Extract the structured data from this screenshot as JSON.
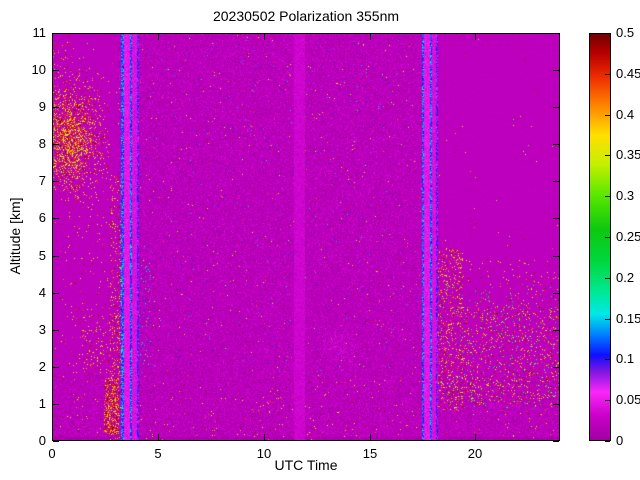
{
  "chart_data": {
    "type": "heatmap",
    "title": "20230502 Polarization 355nm",
    "xlabel": "UTC Time",
    "ylabel": "Altitude [km]",
    "x_range": [
      0,
      24
    ],
    "y_range": [
      0,
      11
    ],
    "x_ticks": [
      0,
      5,
      10,
      15,
      20
    ],
    "x_tick_labels": [
      "0",
      "5",
      "10",
      "15",
      "20"
    ],
    "y_ticks": [
      0,
      1,
      2,
      3,
      4,
      5,
      6,
      7,
      8,
      9,
      10,
      11
    ],
    "y_tick_labels": [
      "0",
      "1",
      "2",
      "3",
      "4",
      "5",
      "6",
      "7",
      "8",
      "9",
      "10",
      "11"
    ],
    "colorbar": {
      "range": [
        0,
        0.5
      ],
      "ticks": [
        0,
        0.05,
        0.1,
        0.15,
        0.2,
        0.25,
        0.3,
        0.35,
        0.4,
        0.45,
        0.5
      ],
      "tick_labels": [
        "0",
        "0.05",
        "0.1",
        "0.15",
        "0.2",
        "0.25",
        "0.3",
        "0.35",
        "0.4",
        "0.45",
        "0.5"
      ]
    },
    "colormap": {
      "stops": [
        [
          0.0,
          "#A000A0"
        ],
        [
          0.03,
          "#C800C8"
        ],
        [
          0.06,
          "#FA28FA"
        ],
        [
          0.085,
          "#8018E0"
        ],
        [
          0.105,
          "#1010FF"
        ],
        [
          0.13,
          "#0080FF"
        ],
        [
          0.155,
          "#00E8E8"
        ],
        [
          0.185,
          "#00E890"
        ],
        [
          0.22,
          "#00D840"
        ],
        [
          0.26,
          "#10C810"
        ],
        [
          0.3,
          "#58E800"
        ],
        [
          0.34,
          "#C8F000"
        ],
        [
          0.375,
          "#FFE000"
        ],
        [
          0.41,
          "#FF8800"
        ],
        [
          0.445,
          "#F03000"
        ],
        [
          0.475,
          "#B80000"
        ],
        [
          0.5,
          "#700000"
        ]
      ]
    },
    "base": {
      "value": 0.022,
      "grain": 0.004
    },
    "features": [
      {
        "name": "field-sparse-dots",
        "type": "speckle",
        "x": [
          0,
          24
        ],
        "y": [
          0,
          11
        ],
        "density": 0.0015,
        "value": [
          0.3,
          0.5
        ]
      },
      {
        "name": "bottom-noise-band",
        "type": "grain",
        "x": [
          0,
          24
        ],
        "y": [
          0,
          1.78
        ],
        "offset": 0.004,
        "amplitude": 0.009
      },
      {
        "name": "bottom-dark-speckle",
        "type": "speckle",
        "x": [
          0,
          24
        ],
        "y": [
          0,
          1.78
        ],
        "density": 0.3,
        "value": [
          0.0,
          0.012
        ]
      },
      {
        "name": "bottom-maroon-speckle",
        "type": "speckle",
        "x": [
          0,
          24
        ],
        "y": [
          0,
          1.78
        ],
        "density": 0.012,
        "value": [
          0.33,
          0.5
        ]
      },
      {
        "name": "bottom-edge-dark-row",
        "type": "grain",
        "x": [
          0,
          24
        ],
        "y": [
          0,
          0.12
        ],
        "offset": -0.012,
        "amplitude": 0.003
      },
      {
        "name": "central-grain",
        "type": "grain",
        "x": [
          3.1,
          17.9
        ],
        "y": [
          1.78,
          11
        ],
        "amplitude": 0.01
      },
      {
        "name": "central-dark-dots",
        "type": "speckle",
        "x": [
          3.1,
          17.9
        ],
        "y": [
          1.78,
          11
        ],
        "density": 0.18,
        "value": [
          0.0,
          0.012
        ]
      },
      {
        "name": "central-light-dots",
        "type": "speckle",
        "x": [
          3.1,
          17.9
        ],
        "y": [
          1.78,
          11
        ],
        "density": 0.05,
        "value": [
          0.03,
          0.046
        ]
      },
      {
        "name": "central-blue-dots",
        "type": "speckle",
        "x": [
          3.1,
          17.9
        ],
        "y": [
          1.78,
          11
        ],
        "density": 0.004,
        "value": [
          0.07,
          0.15
        ]
      },
      {
        "name": "central-maroon-dots",
        "type": "speckle",
        "x": [
          3.1,
          17.9
        ],
        "y": [
          1.78,
          11
        ],
        "density": 0.004,
        "value": [
          0.32,
          0.5
        ]
      },
      {
        "name": "left-sparse-dots",
        "type": "speckle",
        "x": [
          0.4,
          3.3
        ],
        "y": [
          1.8,
          6.3
        ],
        "density": 0.02,
        "value": [
          0.32,
          0.5
        ]
      },
      {
        "name": "left-low-cluster",
        "type": "speckle",
        "x": [
          1.4,
          3.3
        ],
        "y": [
          1.8,
          3.4
        ],
        "density": 0.07,
        "value": [
          0.33,
          0.5
        ]
      },
      {
        "name": "left-cloud-halo",
        "type": "speckle",
        "x": [
          -0.5,
          3.2
        ],
        "y": [
          5.5,
          10.8
        ],
        "density": 0.05,
        "falloff": true,
        "value": [
          0.3,
          0.5
        ]
      },
      {
        "name": "left-cloud-core",
        "type": "speckle",
        "x": [
          -1.2,
          2.7
        ],
        "y": [
          6.4,
          10.0
        ],
        "density": 0.55,
        "falloff": true,
        "value": [
          0.33,
          0.5
        ]
      },
      {
        "name": "left-top-corner-dots",
        "type": "speckle",
        "x": [
          0,
          0.9
        ],
        "y": [
          10.0,
          11
        ],
        "density": 0.05,
        "value": [
          0.32,
          0.5
        ]
      },
      {
        "name": "left-edge-column-dots",
        "type": "speckle",
        "x": [
          2.75,
          3.3
        ],
        "y": [
          0,
          7.2
        ],
        "density": 0.1,
        "value": [
          0.33,
          0.5
        ]
      },
      {
        "name": "pre-stripe-bottom-blob",
        "type": "speckle",
        "x": [
          2.45,
          3.15
        ],
        "y": [
          0.2,
          1.7
        ],
        "density": 0.45,
        "value": [
          0.36,
          0.5
        ]
      },
      {
        "name": "post-stripe1-blue-dots",
        "type": "speckle",
        "x": [
          4.1,
          4.7
        ],
        "y": [
          1.8,
          4.8
        ],
        "density": 0.05,
        "value": [
          0.08,
          0.2
        ]
      },
      {
        "name": "mid-low-pink-patch",
        "type": "speckle",
        "x": [
          12.6,
          14.6
        ],
        "y": [
          1.8,
          3.2
        ],
        "density": 0.4,
        "falloff": true,
        "value": [
          0.028,
          0.045
        ]
      },
      {
        "name": "right-dense-speckle",
        "type": "speckle",
        "x": [
          18.25,
          19.4
        ],
        "y": [
          0.8,
          5.2
        ],
        "density": 0.13,
        "value": [
          0.32,
          0.5
        ]
      },
      {
        "name": "right-mid-speckle",
        "type": "speckle",
        "x": [
          19.3,
          24
        ],
        "y": [
          1.0,
          3.6
        ],
        "density": 0.09,
        "value": [
          0.31,
          0.5
        ]
      },
      {
        "name": "right-high-sparse",
        "type": "speckle",
        "x": [
          18.3,
          24
        ],
        "y": [
          3.4,
          4.9
        ],
        "density": 0.025,
        "value": [
          0.31,
          0.5
        ]
      },
      {
        "name": "right-color-dots",
        "type": "speckle",
        "x": [
          18.3,
          24
        ],
        "y": [
          0.9,
          4.2
        ],
        "density": 0.015,
        "value": [
          0.13,
          0.3
        ]
      },
      {
        "name": "gap-band",
        "type": "vband",
        "x": [
          11.45,
          11.95
        ],
        "value": [
          0.028,
          0.04
        ]
      },
      {
        "name": "stripe1-edge-a",
        "type": "vline",
        "x": 3.33,
        "w": 0.1,
        "value": [
          0.07,
          0.16
        ]
      },
      {
        "name": "stripe1-bright-a",
        "type": "vband",
        "x": [
          3.39,
          3.68
        ],
        "value": [
          0.038,
          0.058
        ]
      },
      {
        "name": "stripe1-edge-b",
        "type": "vline",
        "x": 3.73,
        "w": 0.09,
        "value": [
          0.07,
          0.16
        ]
      },
      {
        "name": "stripe1-bright-b",
        "type": "vband",
        "x": [
          3.79,
          4.0
        ],
        "value": [
          0.034,
          0.052
        ]
      },
      {
        "name": "stripe1-edge-c",
        "type": "vline",
        "x": 4.05,
        "w": 0.08,
        "value": [
          0.06,
          0.12
        ]
      },
      {
        "name": "stripe2-edge-a",
        "type": "vline",
        "x": 17.52,
        "w": 0.09,
        "value": [
          0.07,
          0.16
        ]
      },
      {
        "name": "stripe2-bright-a",
        "type": "vband",
        "x": [
          17.58,
          17.86
        ],
        "value": [
          0.038,
          0.058
        ]
      },
      {
        "name": "stripe2-edge-b",
        "type": "vline",
        "x": 17.91,
        "w": 0.08,
        "value": [
          0.07,
          0.16
        ]
      },
      {
        "name": "stripe2-bright-b",
        "type": "vband",
        "x": [
          17.96,
          18.14
        ],
        "value": [
          0.034,
          0.05
        ]
      },
      {
        "name": "stripe2-edge-c",
        "type": "vline",
        "x": 18.18,
        "w": 0.07,
        "value": [
          0.06,
          0.11
        ]
      }
    ]
  }
}
